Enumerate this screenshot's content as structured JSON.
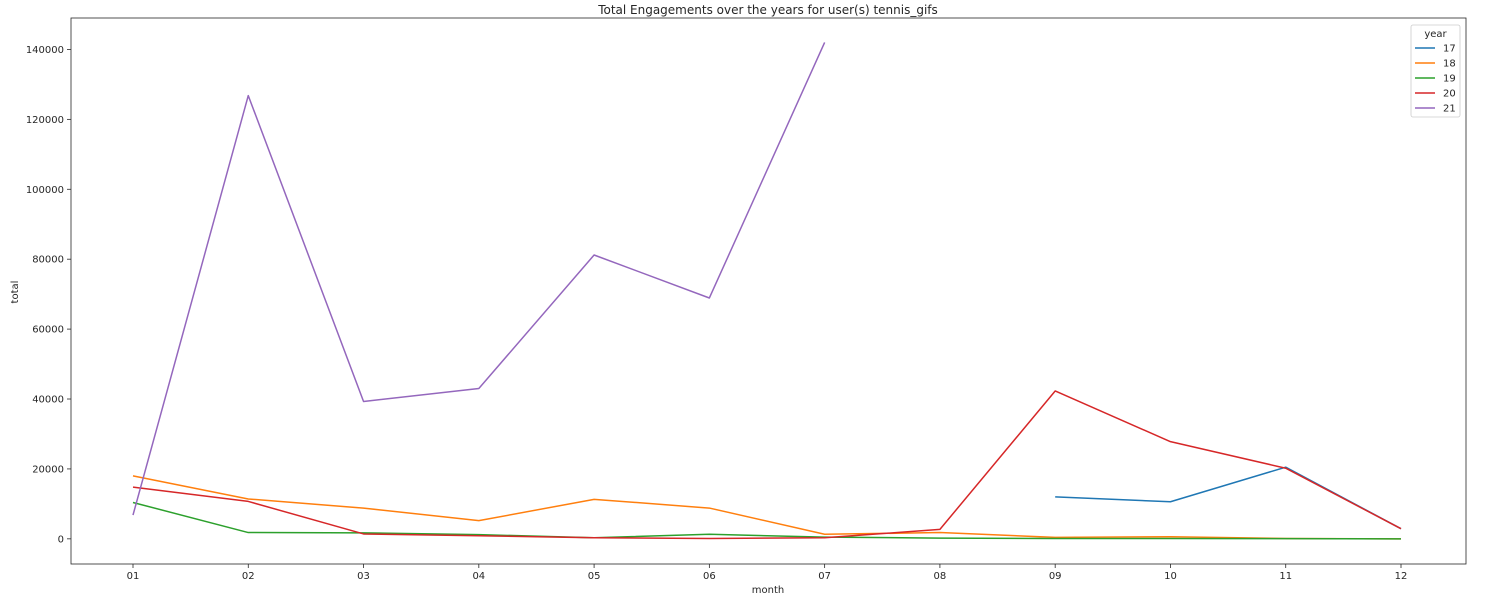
{
  "chart_data": {
    "type": "line",
    "title": "Total Engagements over the years for user(s) tennis_gifs",
    "xlabel": "month",
    "ylabel": "total",
    "categories": [
      "01",
      "02",
      "03",
      "04",
      "05",
      "06",
      "07",
      "08",
      "09",
      "10",
      "11",
      "12"
    ],
    "yticks": [
      0,
      20000,
      40000,
      60000,
      80000,
      100000,
      120000,
      140000
    ],
    "ylim": [
      -7200,
      149000
    ],
    "grid": false,
    "legend": {
      "title": "year",
      "position": "top-right"
    },
    "series": [
      {
        "name": "17",
        "color": "#1f77b4",
        "values": [
          null,
          null,
          null,
          null,
          null,
          null,
          null,
          null,
          12000,
          10600,
          20500,
          2900
        ]
      },
      {
        "name": "18",
        "color": "#ff7f0e",
        "values": [
          18000,
          11400,
          8800,
          5200,
          11300,
          8800,
          1300,
          1800,
          400,
          600,
          100,
          0
        ]
      },
      {
        "name": "19",
        "color": "#2ca02c",
        "values": [
          10400,
          1800,
          1700,
          1200,
          300,
          1300,
          500,
          200,
          100,
          100,
          50,
          0
        ]
      },
      {
        "name": "20",
        "color": "#d62728",
        "values": [
          14800,
          10700,
          1400,
          900,
          300,
          100,
          300,
          2700,
          42300,
          27800,
          20200,
          2900
        ]
      },
      {
        "name": "21",
        "color": "#9467bd",
        "values": [
          6800,
          126800,
          39300,
          43000,
          81200,
          68900,
          142000,
          null,
          null,
          null,
          null,
          null
        ]
      }
    ]
  }
}
